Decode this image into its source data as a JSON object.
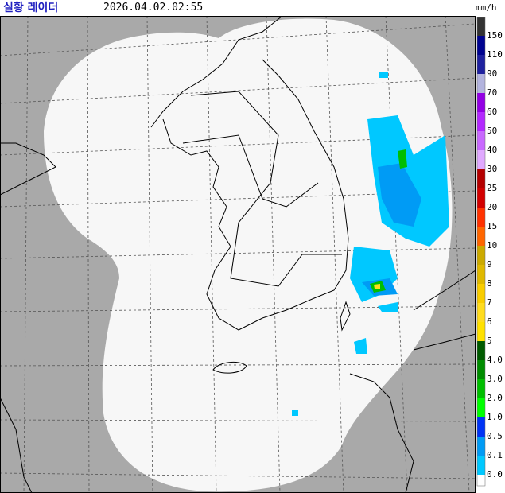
{
  "header": {
    "title": "실황 레이더",
    "timestamp": "2026.04.02.02:55",
    "unit": "mm/h"
  },
  "legend": {
    "cap_color": "#333333",
    "items": [
      {
        "label": "150",
        "color": "#000390"
      },
      {
        "label": "110",
        "color": "#1f219f"
      },
      {
        "label": "90",
        "color": "#b3b4de"
      },
      {
        "label": "70",
        "color": "#9300e4"
      },
      {
        "label": "60",
        "color": "#b329ff"
      },
      {
        "label": "50",
        "color": "#c969ff"
      },
      {
        "label": "40",
        "color": "#e0a9ff"
      },
      {
        "label": "30",
        "color": "#b40000"
      },
      {
        "label": "25",
        "color": "#d20000"
      },
      {
        "label": "20",
        "color": "#ff3200"
      },
      {
        "label": "15",
        "color": "#ff6600"
      },
      {
        "label": "10",
        "color": "#ccaa00"
      },
      {
        "label": "9",
        "color": "#e0b900"
      },
      {
        "label": "8",
        "color": "#f9cd00"
      },
      {
        "label": "7",
        "color": "#ffdc1f"
      },
      {
        "label": "6",
        "color": "#ffe100"
      },
      {
        "label": "5",
        "color": "#005a00"
      },
      {
        "label": "4.0",
        "color": "#008c00"
      },
      {
        "label": "3.0",
        "color": "#00be00"
      },
      {
        "label": "2.0",
        "color": "#00ff00"
      },
      {
        "label": "1.0",
        "color": "#0033f5"
      },
      {
        "label": "0.5",
        "color": "#009bf5"
      },
      {
        "label": "0.1",
        "color": "#00c8ff"
      },
      {
        "label": "0.0",
        "color": "#ffffff"
      }
    ]
  }
}
